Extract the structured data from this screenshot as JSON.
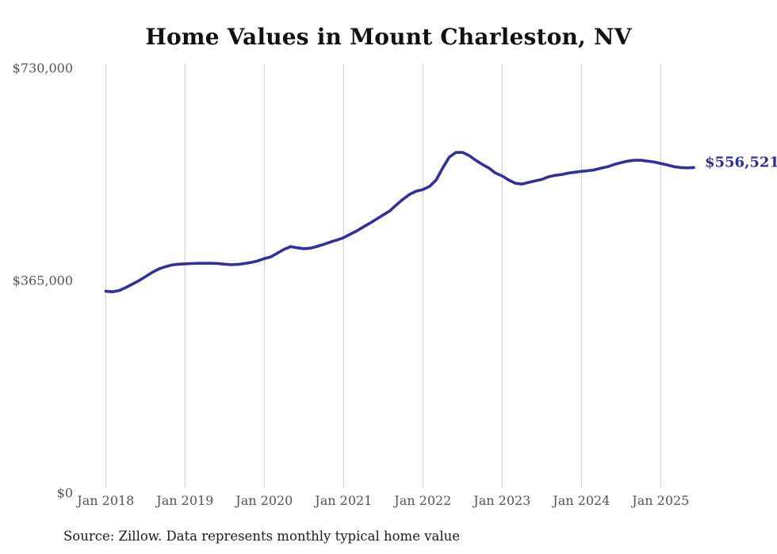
{
  "page": {
    "title": "Home Values in Mount Charleston, NV"
  },
  "chart_data": {
    "type": "line",
    "title": "Home Values in Mount Charleston, NV",
    "series_name": "Monthly typical home value",
    "x_unit": "month",
    "x": [
      "2018-01",
      "2018-02",
      "2018-03",
      "2018-04",
      "2018-05",
      "2018-06",
      "2018-07",
      "2018-08",
      "2018-09",
      "2018-10",
      "2018-11",
      "2018-12",
      "2019-01",
      "2019-02",
      "2019-03",
      "2019-04",
      "2019-05",
      "2019-06",
      "2019-07",
      "2019-08",
      "2019-09",
      "2019-10",
      "2019-11",
      "2019-12",
      "2020-01",
      "2020-02",
      "2020-03",
      "2020-04",
      "2020-05",
      "2020-06",
      "2020-07",
      "2020-08",
      "2020-09",
      "2020-10",
      "2020-11",
      "2020-12",
      "2021-01",
      "2021-02",
      "2021-03",
      "2021-04",
      "2021-05",
      "2021-06",
      "2021-07",
      "2021-08",
      "2021-09",
      "2021-10",
      "2021-11",
      "2021-12",
      "2022-01",
      "2022-02",
      "2022-03",
      "2022-04",
      "2022-05",
      "2022-06",
      "2022-07",
      "2022-08",
      "2022-09",
      "2022-10",
      "2022-11",
      "2022-12",
      "2023-01",
      "2023-02",
      "2023-03",
      "2023-04",
      "2023-05",
      "2023-06",
      "2023-07",
      "2023-08",
      "2023-09",
      "2023-10",
      "2023-11",
      "2023-12",
      "2024-01",
      "2024-02",
      "2024-03",
      "2024-04",
      "2024-05",
      "2024-06",
      "2024-07",
      "2024-08",
      "2024-09",
      "2024-10",
      "2024-11",
      "2024-12",
      "2025-01",
      "2025-02",
      "2025-03",
      "2025-04",
      "2025-05",
      "2025-06"
    ],
    "values": [
      344000,
      343000,
      345000,
      350000,
      356000,
      362000,
      369000,
      376000,
      382000,
      386000,
      389000,
      390500,
      391000,
      391500,
      392000,
      392000,
      392000,
      391500,
      390500,
      389500,
      390000,
      391500,
      393500,
      396000,
      400000,
      403000,
      409500,
      416000,
      420500,
      418500,
      417000,
      418000,
      421000,
      424500,
      428500,
      432000,
      436000,
      442000,
      447500,
      454500,
      461000,
      468000,
      475000,
      482000,
      492500,
      502000,
      510500,
      516000,
      518500,
      524000,
      535000,
      555500,
      574500,
      582500,
      582500,
      577000,
      569000,
      562000,
      555500,
      547000,
      542000,
      535000,
      529500,
      528000,
      531000,
      533500,
      536000,
      540500,
      543000,
      544500,
      547000,
      548500,
      550000,
      551000,
      552500,
      555500,
      558000,
      562000,
      565000,
      567500,
      569000,
      569000,
      567500,
      566000,
      563500,
      561000,
      558000,
      556500,
      556000,
      556521
    ],
    "latest_value": 556521,
    "latest_label": "$556,521",
    "ylim": [
      0,
      730000
    ],
    "y_ticks": [
      {
        "value": 730000,
        "label": "$730,000"
      },
      {
        "value": 365000,
        "label": "$365,000"
      },
      {
        "value": 0,
        "label": "$0"
      }
    ],
    "x_ticks": [
      {
        "month_index": 0,
        "label": "Jan 2018"
      },
      {
        "month_index": 12,
        "label": "Jan 2019"
      },
      {
        "month_index": 24,
        "label": "Jan 2020"
      },
      {
        "month_index": 36,
        "label": "Jan 2021"
      },
      {
        "month_index": 48,
        "label": "Jan 2022"
      },
      {
        "month_index": 60,
        "label": "Jan 2023"
      },
      {
        "month_index": 72,
        "label": "Jan 2024"
      },
      {
        "month_index": 84,
        "label": "Jan 2025"
      }
    ],
    "grid": "vertical-only",
    "legend": "none",
    "colors": {
      "line": "#32309E",
      "latest_label": "#2E2C9C",
      "gridline": "#CCCCCC",
      "tick_label": "#545454"
    }
  },
  "footer": {
    "source_note": "Source: Zillow. Data represents monthly typical home value"
  }
}
